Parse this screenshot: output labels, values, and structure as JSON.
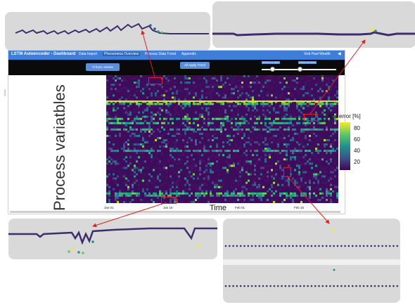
{
  "app": {
    "title": "LSTM Autoencoder - Dashboard",
    "nav": [
      "Data Import",
      "Phenomena Overview",
      "Process Data Trend",
      "Appendix"
    ],
    "active_nav": "Phenomena Overview",
    "visit_link": "Visit Paul Wealth",
    "github_icon": "github-icon"
  },
  "controls": {
    "dropdown_label": "Ti from: entries",
    "apply_button": "All Apply Trend",
    "slider_start_label": "2018-01-12 18:00",
    "slider_end_label": "2018-01-22 00:00"
  },
  "chart_data": {
    "type": "heatmap",
    "ylabel_large": "Process variatbles",
    "ylabel_small": "Names",
    "xlabel": "Time",
    "x_ticks": [
      "Jan 01",
      "Jan 15",
      "Feb 01",
      "Feb 15"
    ],
    "colorbar": {
      "title": "Abs error [%]",
      "ticks": [
        80,
        60,
        40,
        20
      ],
      "colormap": "viridis"
    }
  },
  "colors": {
    "navbar": "#3d7fd8",
    "control_bar": "#0a0a0a",
    "button": "#5b8fd8",
    "highlight": "#e02020",
    "heatmap_base": "#440154"
  }
}
